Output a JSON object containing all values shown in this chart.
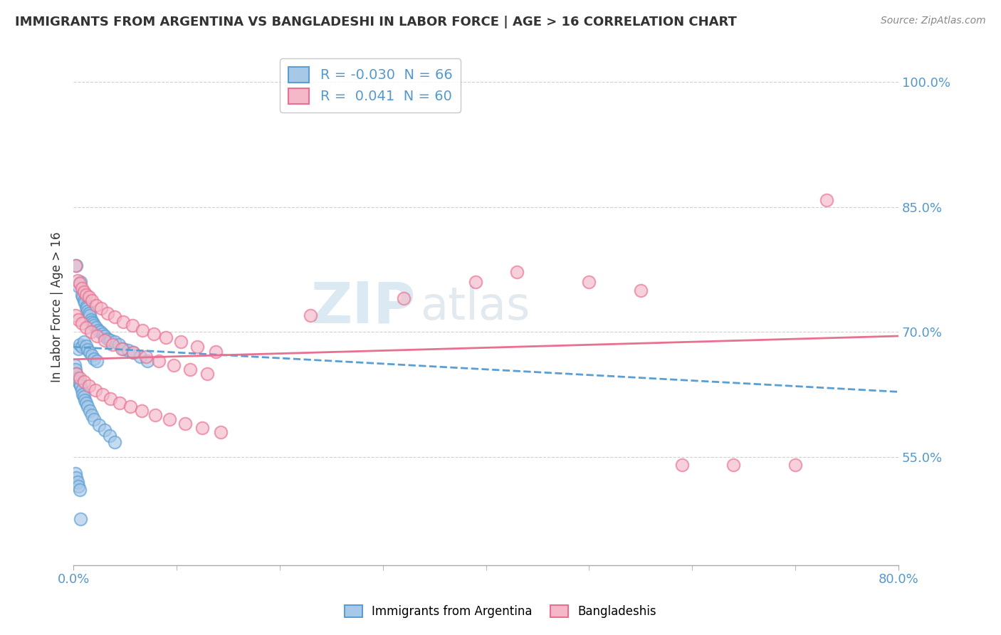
{
  "title": "IMMIGRANTS FROM ARGENTINA VS BANGLADESHI IN LABOR FORCE | AGE > 16 CORRELATION CHART",
  "source": "Source: ZipAtlas.com",
  "ylabel": "In Labor Force | Age > 16",
  "legend_label1": "Immigrants from Argentina",
  "legend_label2": "Bangladeshis",
  "R1": -0.03,
  "N1": 66,
  "R2": 0.041,
  "N2": 60,
  "color1_fill": "#a8c8e8",
  "color2_fill": "#f4b8c8",
  "color1_edge": "#5a9fd4",
  "color2_edge": "#e87090",
  "color1_line": "#5a9fd4",
  "color2_line": "#e87090",
  "xlim": [
    0.0,
    0.8
  ],
  "ylim": [
    0.42,
    1.04
  ],
  "yticks": [
    0.55,
    0.7,
    0.85,
    1.0
  ],
  "background_color": "#ffffff",
  "grid_color": "#d0d0d0",
  "trend1_y_start": 0.682,
  "trend1_y_end": 0.628,
  "trend2_y_start": 0.667,
  "trend2_y_end": 0.695,
  "argentina_x": [
    0.003,
    0.005,
    0.007,
    0.008,
    0.009,
    0.01,
    0.011,
    0.012,
    0.013,
    0.014,
    0.015,
    0.016,
    0.017,
    0.018,
    0.019,
    0.02,
    0.022,
    0.024,
    0.026,
    0.028,
    0.03,
    0.033,
    0.036,
    0.04,
    0.044,
    0.048,
    0.053,
    0.058,
    0.065,
    0.072,
    0.005,
    0.006,
    0.008,
    0.01,
    0.012,
    0.014,
    0.016,
    0.018,
    0.02,
    0.023,
    0.001,
    0.002,
    0.003,
    0.004,
    0.005,
    0.006,
    0.007,
    0.008,
    0.009,
    0.01,
    0.011,
    0.012,
    0.014,
    0.016,
    0.018,
    0.02,
    0.025,
    0.03,
    0.035,
    0.04,
    0.002,
    0.003,
    0.004,
    0.005,
    0.006,
    0.007
  ],
  "argentina_y": [
    0.78,
    0.755,
    0.76,
    0.745,
    0.742,
    0.738,
    0.735,
    0.73,
    0.728,
    0.725,
    0.722,
    0.72,
    0.715,
    0.712,
    0.71,
    0.708,
    0.705,
    0.702,
    0.7,
    0.698,
    0.695,
    0.692,
    0.69,
    0.688,
    0.685,
    0.68,
    0.678,
    0.675,
    0.67,
    0.665,
    0.68,
    0.685,
    0.682,
    0.688,
    0.683,
    0.679,
    0.675,
    0.672,
    0.668,
    0.665,
    0.66,
    0.655,
    0.65,
    0.645,
    0.64,
    0.638,
    0.635,
    0.63,
    0.625,
    0.622,
    0.618,
    0.615,
    0.61,
    0.605,
    0.6,
    0.595,
    0.588,
    0.582,
    0.575,
    0.568,
    0.53,
    0.525,
    0.52,
    0.515,
    0.51,
    0.475
  ],
  "bangladeshi_x": [
    0.002,
    0.004,
    0.006,
    0.008,
    0.01,
    0.012,
    0.015,
    0.018,
    0.022,
    0.027,
    0.033,
    0.04,
    0.048,
    0.057,
    0.067,
    0.078,
    0.09,
    0.104,
    0.12,
    0.138,
    0.002,
    0.005,
    0.008,
    0.012,
    0.017,
    0.023,
    0.03,
    0.038,
    0.047,
    0.058,
    0.07,
    0.083,
    0.097,
    0.113,
    0.13,
    0.003,
    0.006,
    0.01,
    0.015,
    0.021,
    0.028,
    0.036,
    0.045,
    0.055,
    0.066,
    0.079,
    0.093,
    0.108,
    0.125,
    0.143,
    0.23,
    0.32,
    0.39,
    0.43,
    0.5,
    0.55,
    0.59,
    0.64,
    0.7,
    0.73
  ],
  "bangladeshi_y": [
    0.78,
    0.762,
    0.758,
    0.752,
    0.748,
    0.745,
    0.742,
    0.738,
    0.732,
    0.728,
    0.722,
    0.718,
    0.712,
    0.708,
    0.702,
    0.698,
    0.693,
    0.688,
    0.682,
    0.676,
    0.72,
    0.715,
    0.71,
    0.705,
    0.7,
    0.695,
    0.69,
    0.685,
    0.68,
    0.675,
    0.67,
    0.665,
    0.66,
    0.655,
    0.65,
    0.65,
    0.645,
    0.64,
    0.635,
    0.63,
    0.625,
    0.62,
    0.615,
    0.61,
    0.605,
    0.6,
    0.595,
    0.59,
    0.585,
    0.58,
    0.72,
    0.74,
    0.76,
    0.772,
    0.76,
    0.75,
    0.54,
    0.54,
    0.54,
    0.858
  ]
}
